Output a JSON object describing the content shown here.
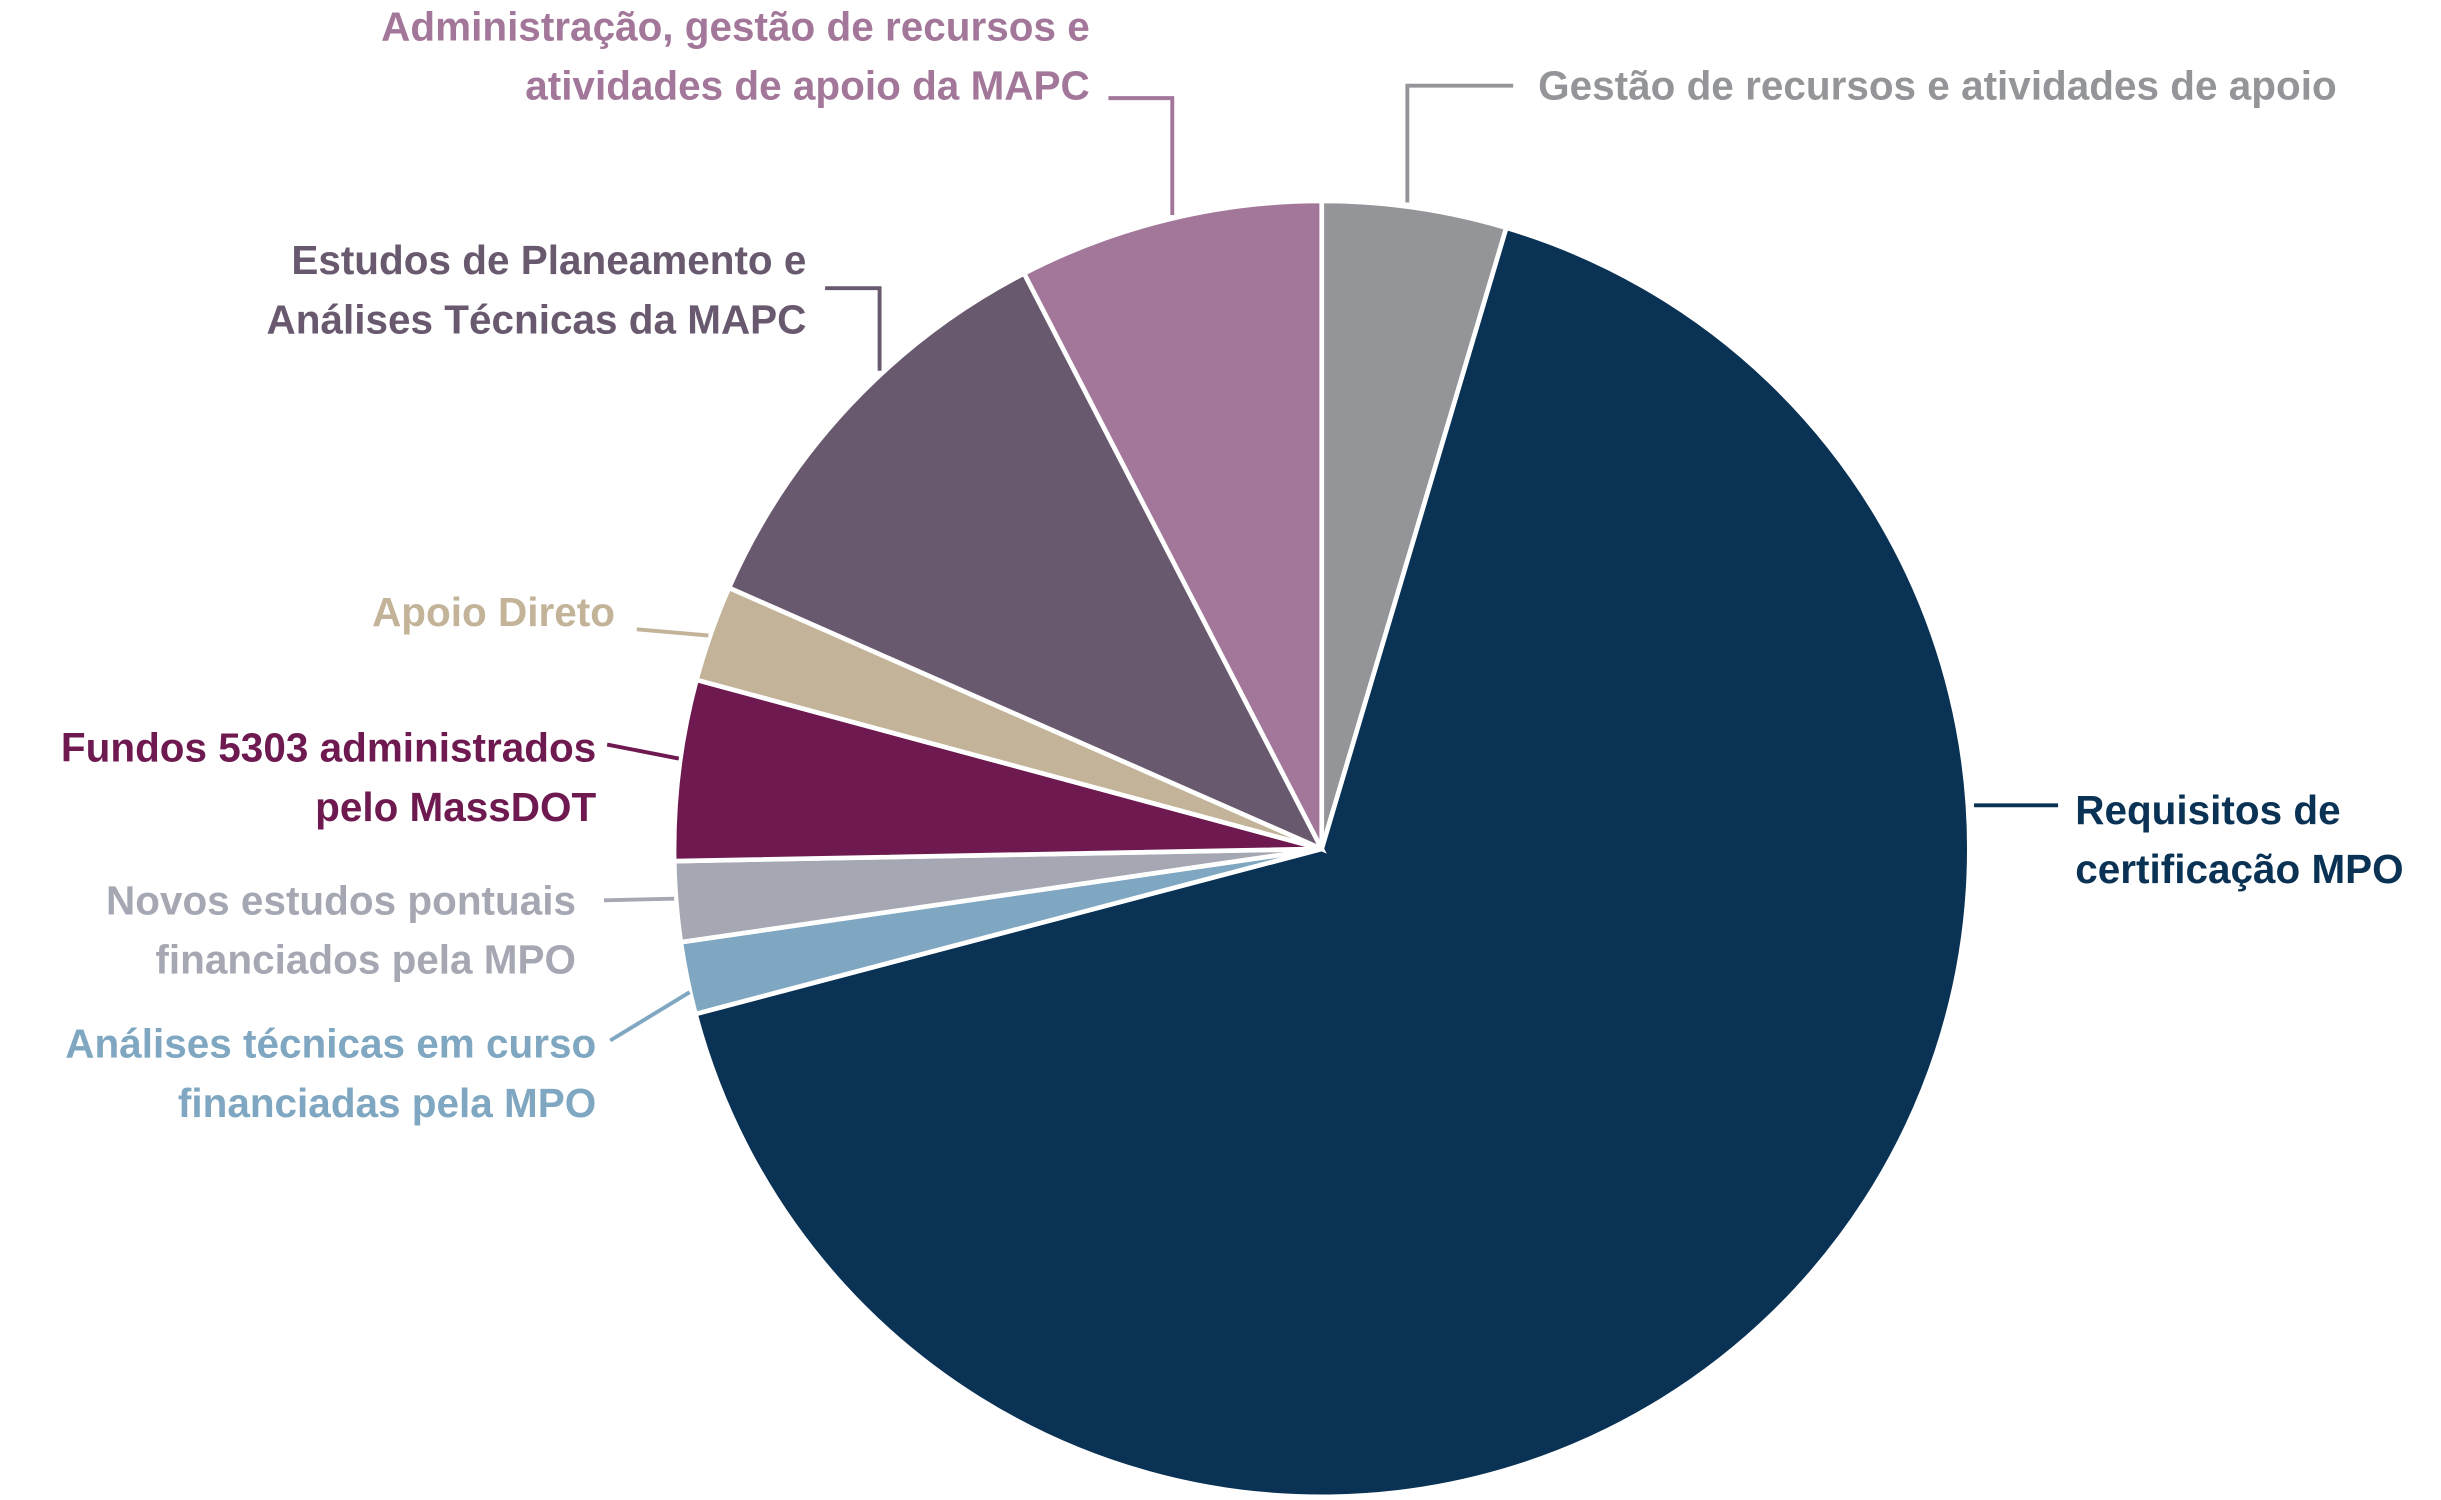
{
  "chart_data": {
    "type": "pie",
    "categories": [
      "Gestão de recursos e atividades de apoio",
      "Requisitos de\ncertificação MPO",
      "Análises técnicas em curso\nfinanciadas pela MPO",
      "Novos estudos pontuais\nfinanciados pela MPO",
      "Fundos 5303 administrados\npelo MassDOT",
      "Apoio Direto",
      "Estudos de Planeamento e\nAnálises Técnicas da MAPC",
      "Administração, gestão de recursos e\natividades de apoio da MAPC"
    ],
    "values": [
      4.6,
      66.3,
      1.8,
      2.0,
      4.5,
      2.4,
      10.8,
      7.6
    ],
    "colors": [
      "#939598",
      "#0a3254",
      "#7fa7c1",
      "#a5a8b3",
      "#6e1a51",
      "#c2b399",
      "#69596f",
      "#a37799"
    ]
  }
}
